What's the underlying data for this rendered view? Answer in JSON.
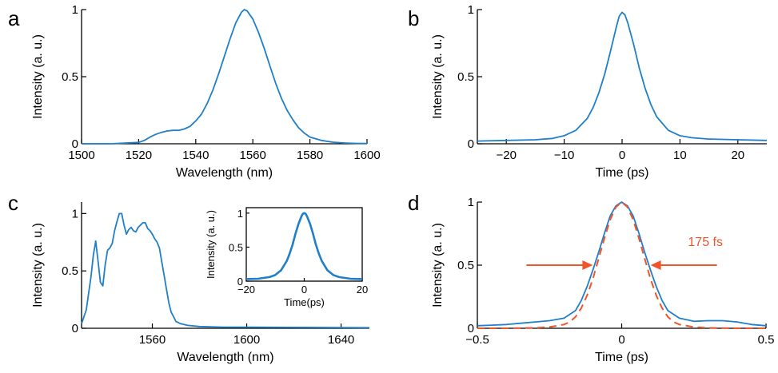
{
  "colors": {
    "curve": "#1f7fc8",
    "fit": "#f0552a",
    "axis": "#000000"
  },
  "chart_data": [
    {
      "panel": "a",
      "type": "line",
      "xlabel": "Wavelength (nm)",
      "ylabel": "Intensity (a. u.)",
      "xlim": [
        1500,
        1600
      ],
      "ylim": [
        0,
        1
      ],
      "xticks": [
        "1500",
        "1520",
        "1540",
        "1560",
        "1580",
        "1600"
      ],
      "yticks": [
        "0",
        "0.5",
        "1"
      ],
      "series": [
        {
          "x": [
            1500,
            1505,
            1510,
            1515,
            1520,
            1522,
            1524,
            1526,
            1528,
            1530,
            1532,
            1534,
            1536,
            1538,
            1540,
            1542,
            1544,
            1546,
            1548,
            1550,
            1552,
            1554,
            1556,
            1557,
            1558,
            1560,
            1562,
            1564,
            1566,
            1568,
            1570,
            1572,
            1574,
            1576,
            1578,
            1580,
            1584,
            1588,
            1592,
            1596,
            1600
          ],
          "y": [
            0.0,
            0.0,
            0.0,
            0.005,
            0.01,
            0.025,
            0.05,
            0.07,
            0.085,
            0.095,
            0.1,
            0.1,
            0.11,
            0.13,
            0.17,
            0.22,
            0.3,
            0.4,
            0.52,
            0.65,
            0.78,
            0.9,
            0.98,
            1.0,
            0.99,
            0.93,
            0.83,
            0.71,
            0.58,
            0.45,
            0.34,
            0.25,
            0.18,
            0.12,
            0.08,
            0.05,
            0.025,
            0.012,
            0.006,
            0.003,
            0.002
          ]
        }
      ]
    },
    {
      "panel": "b",
      "type": "line",
      "xlabel": "Time (ps)",
      "ylabel": "Intensity (a. u.)",
      "xlim": [
        -25,
        25
      ],
      "ylim": [
        0,
        1
      ],
      "xticks": [
        "−20",
        "−10",
        "0",
        "10",
        "20"
      ],
      "yticks": [
        "0",
        "0.5",
        "1"
      ],
      "series": [
        {
          "x": [
            -25,
            -20,
            -15,
            -12,
            -10,
            -8,
            -6,
            -5,
            -4,
            -3,
            -2,
            -1,
            -0.5,
            0,
            0.5,
            1,
            2,
            3,
            4,
            5,
            6,
            8,
            10,
            12,
            15,
            20,
            25
          ],
          "y": [
            0.02,
            0.025,
            0.03,
            0.04,
            0.06,
            0.1,
            0.19,
            0.27,
            0.38,
            0.52,
            0.69,
            0.87,
            0.95,
            0.98,
            0.96,
            0.9,
            0.74,
            0.56,
            0.41,
            0.29,
            0.2,
            0.1,
            0.06,
            0.045,
            0.035,
            0.03,
            0.025
          ]
        }
      ]
    },
    {
      "panel": "c",
      "type": "line",
      "xlabel": "Wavelength (nm)",
      "ylabel": "Intensity (a. u.)",
      "xlim": [
        1530,
        1652
      ],
      "ylim": [
        0,
        1.1
      ],
      "xticks": [
        "1560",
        "1600",
        "1640"
      ],
      "yticks": [
        "0",
        "0.5",
        "1"
      ],
      "series": [
        {
          "x": [
            1530,
            1532,
            1534,
            1535,
            1536,
            1537,
            1538,
            1539,
            1540,
            1541,
            1542,
            1543,
            1544,
            1545,
            1546,
            1547,
            1548,
            1549,
            1550,
            1551,
            1552,
            1553,
            1554,
            1555,
            1556,
            1557,
            1558,
            1559,
            1560,
            1561,
            1562,
            1563,
            1564,
            1565,
            1566,
            1567,
            1568,
            1569,
            1570,
            1572,
            1575,
            1580,
            1590,
            1600,
            1620,
            1640,
            1652
          ],
          "y": [
            0.04,
            0.16,
            0.45,
            0.64,
            0.76,
            0.58,
            0.4,
            0.37,
            0.55,
            0.68,
            0.7,
            0.74,
            0.85,
            0.93,
            1.0,
            1.0,
            0.9,
            0.82,
            0.86,
            0.88,
            0.85,
            0.84,
            0.88,
            0.9,
            0.92,
            0.92,
            0.87,
            0.85,
            0.82,
            0.78,
            0.75,
            0.7,
            0.58,
            0.46,
            0.34,
            0.22,
            0.14,
            0.1,
            0.06,
            0.04,
            0.025,
            0.015,
            0.01,
            0.01,
            0.008,
            0.006,
            0.005
          ]
        }
      ],
      "inset": {
        "xlabel": "Time(ps)",
        "ylabel": "Intensity (a. u.)",
        "xlim": [
          -20,
          20
        ],
        "ylim": [
          0,
          1.08
        ],
        "xticks": [
          "−20",
          "0",
          "20"
        ],
        "yticks": [
          "0",
          "0.5",
          "1"
        ],
        "series": [
          {
            "x": [
              -20,
              -16,
              -12,
              -10,
              -8,
              -6,
              -5,
              -4,
              -3,
              -2,
              -1,
              -0.5,
              0,
              0.5,
              1,
              2,
              3,
              4,
              5,
              6,
              8,
              10,
              12,
              16,
              20
            ],
            "y": [
              0.03,
              0.035,
              0.06,
              0.09,
              0.16,
              0.3,
              0.41,
              0.54,
              0.7,
              0.84,
              0.95,
              0.99,
              1.0,
              0.99,
              0.95,
              0.84,
              0.7,
              0.54,
              0.41,
              0.3,
              0.16,
              0.09,
              0.06,
              0.035,
              0.03
            ]
          }
        ]
      }
    },
    {
      "panel": "d",
      "type": "line",
      "xlabel": "Time (ps)",
      "ylabel": "Intensity (a. u.)",
      "xlim": [
        -0.5,
        0.5
      ],
      "ylim": [
        0,
        1
      ],
      "xticks": [
        "−0.5",
        "0",
        "0.5"
      ],
      "yticks": [
        "0",
        "0.5",
        "1"
      ],
      "annotation": "175 fs",
      "series": [
        {
          "style": "measured",
          "x": [
            -0.5,
            -0.45,
            -0.4,
            -0.35,
            -0.3,
            -0.25,
            -0.2,
            -0.16,
            -0.14,
            -0.12,
            -0.1,
            -0.08,
            -0.06,
            -0.04,
            -0.02,
            0,
            0.02,
            0.04,
            0.06,
            0.08,
            0.1,
            0.12,
            0.14,
            0.16,
            0.2,
            0.25,
            0.3,
            0.35,
            0.4,
            0.45,
            0.5
          ],
          "y": [
            0.02,
            0.025,
            0.03,
            0.04,
            0.05,
            0.06,
            0.08,
            0.14,
            0.22,
            0.33,
            0.46,
            0.6,
            0.75,
            0.89,
            0.97,
            1.0,
            0.97,
            0.89,
            0.75,
            0.6,
            0.46,
            0.33,
            0.22,
            0.14,
            0.08,
            0.055,
            0.06,
            0.06,
            0.05,
            0.03,
            0.02
          ]
        },
        {
          "style": "fit",
          "x": [
            -0.5,
            -0.4,
            -0.3,
            -0.25,
            -0.2,
            -0.18,
            -0.16,
            -0.14,
            -0.12,
            -0.1,
            -0.08,
            -0.06,
            -0.04,
            -0.02,
            0,
            0.02,
            0.04,
            0.06,
            0.08,
            0.1,
            0.12,
            0.14,
            0.16,
            0.18,
            0.2,
            0.25,
            0.3,
            0.4,
            0.5
          ],
          "y": [
            0.0,
            0.0,
            0.003,
            0.01,
            0.03,
            0.05,
            0.09,
            0.16,
            0.26,
            0.39,
            0.55,
            0.71,
            0.86,
            0.96,
            1.0,
            0.96,
            0.86,
            0.71,
            0.55,
            0.39,
            0.26,
            0.16,
            0.09,
            0.05,
            0.03,
            0.01,
            0.003,
            0.0,
            0.0
          ]
        }
      ]
    }
  ]
}
